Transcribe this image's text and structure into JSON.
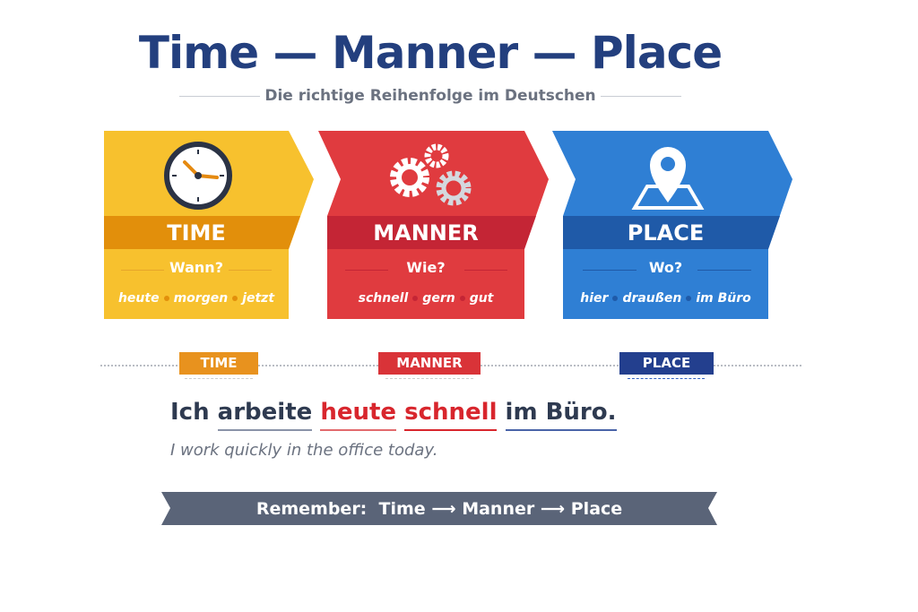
{
  "title": "Time — Manner — Place",
  "subtitle": "Die richtige Reihenfolge im Deutschen",
  "colors": {
    "time": "#f7c12e",
    "time_band": "#e28f0b",
    "manner": "#e03b3f",
    "manner_band": "#c42535",
    "place": "#2f7fd4",
    "place_band": "#1f5aa8",
    "navy": "#233f7e",
    "ribbon": "#5a6478"
  },
  "panels": [
    {
      "label": "TIME",
      "question": "Wann?",
      "icon": "clock-icon",
      "examples": [
        "heute",
        "morgen",
        "jetzt"
      ]
    },
    {
      "label": "MANNER",
      "question": "Wie?",
      "icon": "gears-icon",
      "examples": [
        "schnell",
        "gern",
        "gut"
      ]
    },
    {
      "label": "PLACE",
      "question": "Wo?",
      "icon": "map-pin-icon",
      "examples": [
        "hier",
        "draußen",
        "im Büro"
      ]
    }
  ],
  "tags": [
    "TIME",
    "MANNER",
    "PLACE"
  ],
  "sentence": {
    "subject": "Ich",
    "verb": "arbeite",
    "time": "heute",
    "manner": "schnell",
    "place": "im Büro."
  },
  "translation": "I work quickly in the office today.",
  "ribbon": {
    "label": "Remember:",
    "steps": [
      "Time",
      "Manner",
      "Place"
    ],
    "arrow": "⟶"
  }
}
